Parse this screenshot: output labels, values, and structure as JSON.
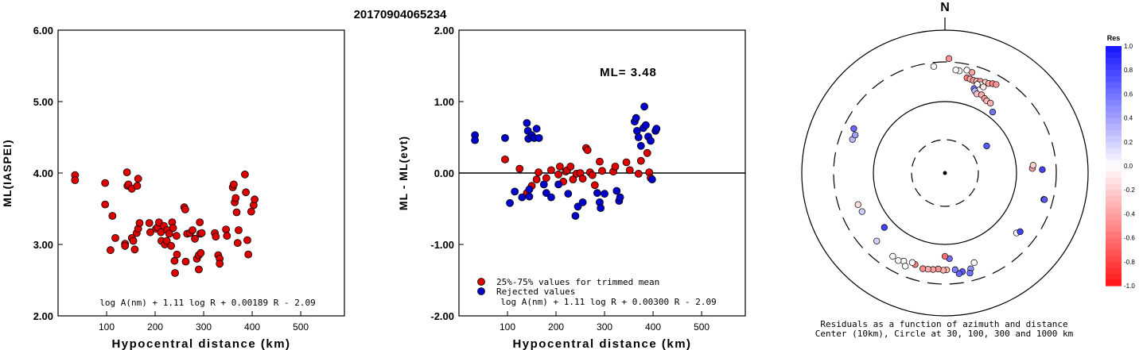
{
  "title": "20170904065234",
  "chart_data": [
    {
      "type": "scatter",
      "xlabel": "Hypocentral distance (km)",
      "ylabel": "ML(IASPEI)",
      "xlim": [
        0,
        590
      ],
      "ylim": [
        2.0,
        6.0
      ],
      "x_ticks": [
        "100",
        "200",
        "300",
        "400",
        "500"
      ],
      "x_tick_values": [
        100,
        200,
        300,
        400,
        500
      ],
      "y_ticks": [
        "2.00",
        "3.00",
        "4.00",
        "5.00",
        "6.00"
      ],
      "y_tick_values": [
        2,
        3,
        4,
        5,
        6
      ],
      "formula": "log A(nm) + 1.11 log R + 0.00189 R - 2.09",
      "marker_color": "#dd0000",
      "points": [
        [
          35,
          3.97
        ],
        [
          35,
          3.9
        ],
        [
          97,
          3.86
        ],
        [
          97,
          3.56
        ],
        [
          112,
          3.4
        ],
        [
          108,
          2.92
        ],
        [
          118,
          3.09
        ],
        [
          138,
          3.01
        ],
        [
          138,
          2.98
        ],
        [
          142,
          4.01
        ],
        [
          143,
          3.82
        ],
        [
          145,
          3.84
        ],
        [
          152,
          3.78
        ],
        [
          152,
          3.09
        ],
        [
          155,
          3.05
        ],
        [
          158,
          2.93
        ],
        [
          162,
          3.16
        ],
        [
          163,
          3.82
        ],
        [
          165,
          3.92
        ],
        [
          165,
          3.22
        ],
        [
          168,
          3.3
        ],
        [
          188,
          3.3
        ],
        [
          190,
          3.17
        ],
        [
          202,
          3.22
        ],
        [
          205,
          3.24
        ],
        [
          208,
          3.31
        ],
        [
          212,
          3.17
        ],
        [
          213,
          3.05
        ],
        [
          218,
          3.26
        ],
        [
          220,
          3.0
        ],
        [
          224,
          3.05
        ],
        [
          225,
          3.2
        ],
        [
          229,
          3.15
        ],
        [
          233,
          2.98
        ],
        [
          235,
          3.31
        ],
        [
          237,
          3.23
        ],
        [
          240,
          2.77
        ],
        [
          241,
          2.6
        ],
        [
          244,
          3.12
        ],
        [
          245,
          2.86
        ],
        [
          260,
          3.52
        ],
        [
          262,
          3.49
        ],
        [
          263,
          2.76
        ],
        [
          266,
          3.15
        ],
        [
          272,
          3.16
        ],
        [
          277,
          3.2
        ],
        [
          282,
          3.08
        ],
        [
          286,
          2.8
        ],
        [
          290,
          2.85
        ],
        [
          290,
          2.65
        ],
        [
          292,
          3.31
        ],
        [
          293,
          3.15
        ],
        [
          294,
          2.88
        ],
        [
          296,
          3.16
        ],
        [
          323,
          3.16
        ],
        [
          325,
          3.11
        ],
        [
          330,
          2.85
        ],
        [
          333,
          2.8
        ],
        [
          333,
          2.73
        ],
        [
          346,
          3.21
        ],
        [
          348,
          3.12
        ],
        [
          360,
          3.8
        ],
        [
          362,
          3.84
        ],
        [
          364,
          3.59
        ],
        [
          366,
          3.65
        ],
        [
          368,
          3.45
        ],
        [
          370,
          3.02
        ],
        [
          372,
          3.2
        ],
        [
          385,
          3.98
        ],
        [
          387,
          3.73
        ],
        [
          390,
          3.06
        ],
        [
          392,
          2.86
        ],
        [
          398,
          3.46
        ],
        [
          403,
          3.55
        ],
        [
          405,
          3.63
        ]
      ]
    },
    {
      "type": "scatter",
      "xlabel": "Hypocentral distance (km)",
      "ylabel": "ML - ML(evt)",
      "xlim": [
        0,
        590
      ],
      "ylim": [
        -2.0,
        2.0
      ],
      "x_ticks": [
        "100",
        "200",
        "300",
        "400",
        "500"
      ],
      "x_tick_values": [
        100,
        200,
        300,
        400,
        500
      ],
      "y_ticks": [
        "-2.00",
        "-1.00",
        "0.00",
        "1.00",
        "2.00"
      ],
      "y_tick_values": [
        -2,
        -1,
        0,
        1,
        2
      ],
      "annotation": "ML= 3.48",
      "formula": "log A(nm) + 1.11 log R + 0.00300 R - 2.09",
      "legend": [
        {
          "label": "25%-75% values for trimmed mean",
          "color": "#dd0000"
        },
        {
          "label": "Rejected values",
          "color": "#0000cc"
        }
      ],
      "series": [
        {
          "name": "25%-75% values for trimmed mean",
          "color": "#dd0000",
          "points": [
            [
              95,
              0.19
            ],
            [
              125,
              0.06
            ],
            [
              140,
              -0.28
            ],
            [
              150,
              -0.18
            ],
            [
              160,
              -0.09
            ],
            [
              164,
              0.01
            ],
            [
              180,
              -0.07
            ],
            [
              190,
              0.04
            ],
            [
              205,
              -0.02
            ],
            [
              208,
              0.09
            ],
            [
              215,
              -0.12
            ],
            [
              220,
              0.02
            ],
            [
              223,
              0.04
            ],
            [
              230,
              0.09
            ],
            [
              235,
              -0.09
            ],
            [
              242,
              -0.01
            ],
            [
              250,
              0.0
            ],
            [
              255,
              -0.08
            ],
            [
              262,
              0.35
            ],
            [
              265,
              0.32
            ],
            [
              270,
              0.01
            ],
            [
              275,
              -0.03
            ],
            [
              280,
              -0.17
            ],
            [
              290,
              0.16
            ],
            [
              295,
              0.03
            ],
            [
              318,
              0.02
            ],
            [
              322,
              0.09
            ],
            [
              345,
              0.15
            ],
            [
              352,
              0.04
            ],
            [
              370,
              -0.01
            ],
            [
              375,
              0.17
            ],
            [
              388,
              0.28
            ],
            [
              392,
              0.01
            ],
            [
              395,
              -0.07
            ]
          ]
        },
        {
          "name": "Rejected values",
          "color": "#0000cc",
          "points": [
            [
              33,
              0.53
            ],
            [
              33,
              0.46
            ],
            [
              95,
              0.49
            ],
            [
              105,
              -0.42
            ],
            [
              115,
              -0.26
            ],
            [
              130,
              -0.34
            ],
            [
              140,
              0.7
            ],
            [
              142,
              0.59
            ],
            [
              143,
              0.48
            ],
            [
              145,
              -0.23
            ],
            [
              145,
              -0.33
            ],
            [
              150,
              0.53
            ],
            [
              155,
              0.49
            ],
            [
              160,
              0.62
            ],
            [
              165,
              0.49
            ],
            [
              175,
              -0.16
            ],
            [
              180,
              -0.28
            ],
            [
              190,
              -0.34
            ],
            [
              205,
              -0.16
            ],
            [
              225,
              -0.29
            ],
            [
              240,
              -0.6
            ],
            [
              245,
              -0.47
            ],
            [
              255,
              -0.41
            ],
            [
              285,
              -0.28
            ],
            [
              290,
              -0.41
            ],
            [
              292,
              -0.49
            ],
            [
              300,
              -0.29
            ],
            [
              325,
              -0.25
            ],
            [
              330,
              -0.39
            ],
            [
              332,
              -0.34
            ],
            [
              362,
              0.72
            ],
            [
              365,
              0.77
            ],
            [
              367,
              0.59
            ],
            [
              370,
              0.5
            ],
            [
              375,
              0.38
            ],
            [
              380,
              0.63
            ],
            [
              382,
              0.93
            ],
            [
              385,
              0.67
            ],
            [
              390,
              0.51
            ],
            [
              395,
              0.45
            ],
            [
              398,
              -0.09
            ],
            [
              405,
              0.59
            ],
            [
              407,
              0.62
            ]
          ]
        }
      ]
    },
    {
      "type": "polar-scatter",
      "north_label": "N",
      "caption": [
        "Residuals as a function of azimuth and distance",
        "Center (10km), Circle at 30, 100, 300 and 1000 km"
      ],
      "ring_distances_km": [
        10,
        30,
        100,
        300,
        1000
      ],
      "colorbar": {
        "title": "Res",
        "ticks": [
          "1.0",
          "0.8",
          "0.6",
          "0.4",
          "0.2",
          "0.0",
          "-0.2",
          "-0.4",
          "-0.6",
          "-0.8",
          "-1.0"
        ],
        "tick_values": [
          1.0,
          0.8,
          0.6,
          0.4,
          0.2,
          0.0,
          -0.2,
          -0.4,
          -0.6,
          -0.8,
          -1.0
        ]
      },
      "stations": [
        {
          "az": 15,
          "dist": 265,
          "res": -0.4
        },
        {
          "az": 12,
          "dist": 270,
          "res": 0.0
        },
        {
          "az": 8,
          "dist": 260,
          "res": 0.0
        },
        {
          "az": 6,
          "dist": 262,
          "res": 0.0
        },
        {
          "az": 354,
          "dist": 280,
          "res": 0.0
        },
        {
          "az": 2,
          "dist": 375,
          "res": -0.45
        },
        {
          "az": 13,
          "dist": 232,
          "res": -0.55
        },
        {
          "az": 15,
          "dist": 230,
          "res": -0.35
        },
        {
          "az": 17,
          "dist": 228,
          "res": -0.4
        },
        {
          "az": 19,
          "dist": 230,
          "res": -0.3
        },
        {
          "az": 21,
          "dist": 235,
          "res": -0.45
        },
        {
          "az": 24,
          "dist": 240,
          "res": -0.2
        },
        {
          "az": 26,
          "dist": 242,
          "res": -0.35
        },
        {
          "az": 28,
          "dist": 250,
          "res": -0.5
        },
        {
          "az": 30,
          "dist": 255,
          "res": -0.45
        },
        {
          "az": 22,
          "dist": 220,
          "res": 0.0
        },
        {
          "az": 20,
          "dist": 215,
          "res": 0.0
        },
        {
          "az": 24,
          "dist": 215,
          "res": -0.1
        },
        {
          "az": 19,
          "dist": 190,
          "res": 0.6
        },
        {
          "az": 20,
          "dist": 180,
          "res": 0.3
        },
        {
          "az": 22,
          "dist": 170,
          "res": -0.25
        },
        {
          "az": 25,
          "dist": 175,
          "res": -0.35
        },
        {
          "az": 28,
          "dist": 165,
          "res": -0.4
        },
        {
          "az": 30,
          "dist": 160,
          "res": -0.3
        },
        {
          "az": 33,
          "dist": 160,
          "res": -0.35
        },
        {
          "az": 38,
          "dist": 130,
          "res": 0.6
        },
        {
          "az": 57,
          "dist": 60,
          "res": 0.7
        },
        {
          "az": 87,
          "dist": 180,
          "res": -0.4
        },
        {
          "az": 85,
          "dist": 185,
          "res": -0.2
        },
        {
          "az": 88,
          "dist": 230,
          "res": 0.8
        },
        {
          "az": 105,
          "dist": 255,
          "res": 0.8
        },
        {
          "az": 105,
          "dist": 258,
          "res": 0.7
        },
        {
          "az": 130,
          "dist": 210,
          "res": 0.0
        },
        {
          "az": 128,
          "dist": 220,
          "res": 0.8
        },
        {
          "az": 162,
          "dist": 215,
          "res": 0.0
        },
        {
          "az": 165,
          "dist": 240,
          "res": 0.45
        },
        {
          "az": 166,
          "dist": 260,
          "res": 0.6
        },
        {
          "az": 170,
          "dist": 245,
          "res": 0.7
        },
        {
          "az": 172,
          "dist": 252,
          "res": 0.65
        },
        {
          "az": 174,
          "dist": 230,
          "res": 0.55
        },
        {
          "az": 177,
          "dist": 172,
          "res": 0.6
        },
        {
          "az": 179,
          "dist": 228,
          "res": -0.3
        },
        {
          "az": 181,
          "dist": 230,
          "res": -0.35
        },
        {
          "az": 184,
          "dist": 225,
          "res": -0.45
        },
        {
          "az": 187,
          "dist": 230,
          "res": -0.4
        },
        {
          "az": 190,
          "dist": 232,
          "res": -0.35
        },
        {
          "az": 193,
          "dist": 235,
          "res": -0.5
        },
        {
          "az": 198,
          "dist": 225,
          "res": -0.55
        },
        {
          "az": 180,
          "dist": 160,
          "res": -0.6
        },
        {
          "az": 200,
          "dist": 220,
          "res": 0.0
        },
        {
          "az": 205,
          "dist": 230,
          "res": 0.0
        },
        {
          "az": 203,
          "dist": 250,
          "res": 0.0
        },
        {
          "az": 208,
          "dist": 240,
          "res": 0.0
        },
        {
          "az": 212,
          "dist": 235,
          "res": 0.0
        },
        {
          "az": 225,
          "dist": 225,
          "res": 0.2
        },
        {
          "az": 228,
          "dist": 150,
          "res": 0.8
        },
        {
          "az": 245,
          "dist": 200,
          "res": 0.2
        },
        {
          "az": 250,
          "dist": 205,
          "res": -0.15
        },
        {
          "az": 290,
          "dist": 235,
          "res": 0.3
        },
        {
          "az": 293,
          "dist": 230,
          "res": 0.4
        },
        {
          "az": 296,
          "dist": 250,
          "res": 0.65
        }
      ]
    }
  ]
}
